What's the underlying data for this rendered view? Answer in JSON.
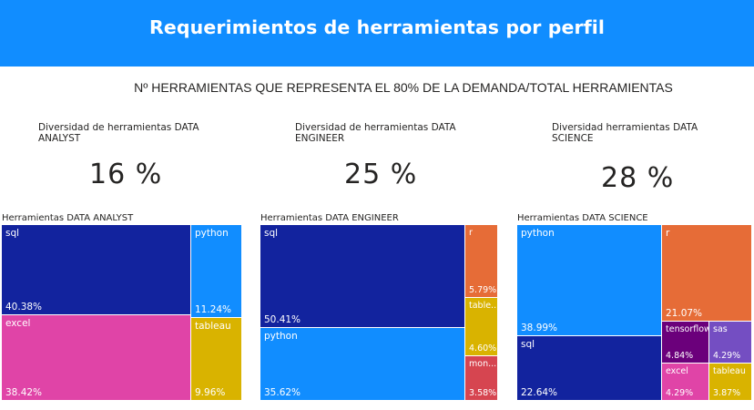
{
  "header": {
    "title": "Requerimientos de herramientas por perfil"
  },
  "subtitle": "Nº HERRAMIENTAS QUE REPRESENTA EL 80% DE LA DEMANDA/TOTAL HERRAMIENTAS",
  "cards": [
    {
      "label": "Diversidad de herramientas DATA ANALYST",
      "value": "16 %"
    },
    {
      "label": "Diversidad de herramientas DATA ENGINEER",
      "value": "25 %"
    },
    {
      "label": "Diversidad herramientas DATA SCIENCE",
      "value": "28 %"
    }
  ],
  "colors": {
    "header": "#118dff",
    "navy": "#12239e",
    "blue": "#118dff",
    "pink": "#e044a7",
    "gold": "#d9b300",
    "orange": "#e66c37",
    "red": "#d64550",
    "purple": "#6b007b",
    "violet": "#744ec2"
  },
  "chart_data": [
    {
      "type": "treemap",
      "title": "Herramientas DATA ANALYST",
      "items": [
        {
          "label": "sql",
          "value": 40.38,
          "display": "40.38%",
          "color": "#12239e"
        },
        {
          "label": "excel",
          "value": 38.42,
          "display": "38.42%",
          "color": "#e044a7"
        },
        {
          "label": "python",
          "value": 11.24,
          "display": "11.24%",
          "color": "#118dff"
        },
        {
          "label": "tableau",
          "value": 9.96,
          "display": "9.96%",
          "color": "#d9b300"
        }
      ]
    },
    {
      "type": "treemap",
      "title": "Herramientas DATA ENGINEER",
      "items": [
        {
          "label": "sql",
          "value": 50.41,
          "display": "50.41%",
          "color": "#12239e"
        },
        {
          "label": "python",
          "value": 35.62,
          "display": "35.62%",
          "color": "#118dff"
        },
        {
          "label": "r",
          "value": 5.79,
          "display": "5.79%",
          "color": "#e66c37"
        },
        {
          "label": "table...",
          "value": 4.6,
          "display": "4.60%",
          "color": "#d9b300"
        },
        {
          "label": "mon...",
          "value": 3.58,
          "display": "3.58%",
          "color": "#d64550"
        }
      ]
    },
    {
      "type": "treemap",
      "title": "Herramientas DATA SCIENCE",
      "items": [
        {
          "label": "python",
          "value": 38.99,
          "display": "38.99%",
          "color": "#118dff"
        },
        {
          "label": "sql",
          "value": 22.64,
          "display": "22.64%",
          "color": "#12239e"
        },
        {
          "label": "r",
          "value": 21.07,
          "display": "21.07%",
          "color": "#e66c37"
        },
        {
          "label": "tensorflow",
          "value": 4.84,
          "display": "4.84%",
          "color": "#6b007b"
        },
        {
          "label": "sas",
          "value": 4.29,
          "display": "4.29%",
          "color": "#744ec2"
        },
        {
          "label": "excel",
          "value": 4.29,
          "display": "4.29%",
          "color": "#e044a7"
        },
        {
          "label": "tableau",
          "value": 3.87,
          "display": "3.87%",
          "color": "#d9b300"
        }
      ]
    }
  ]
}
